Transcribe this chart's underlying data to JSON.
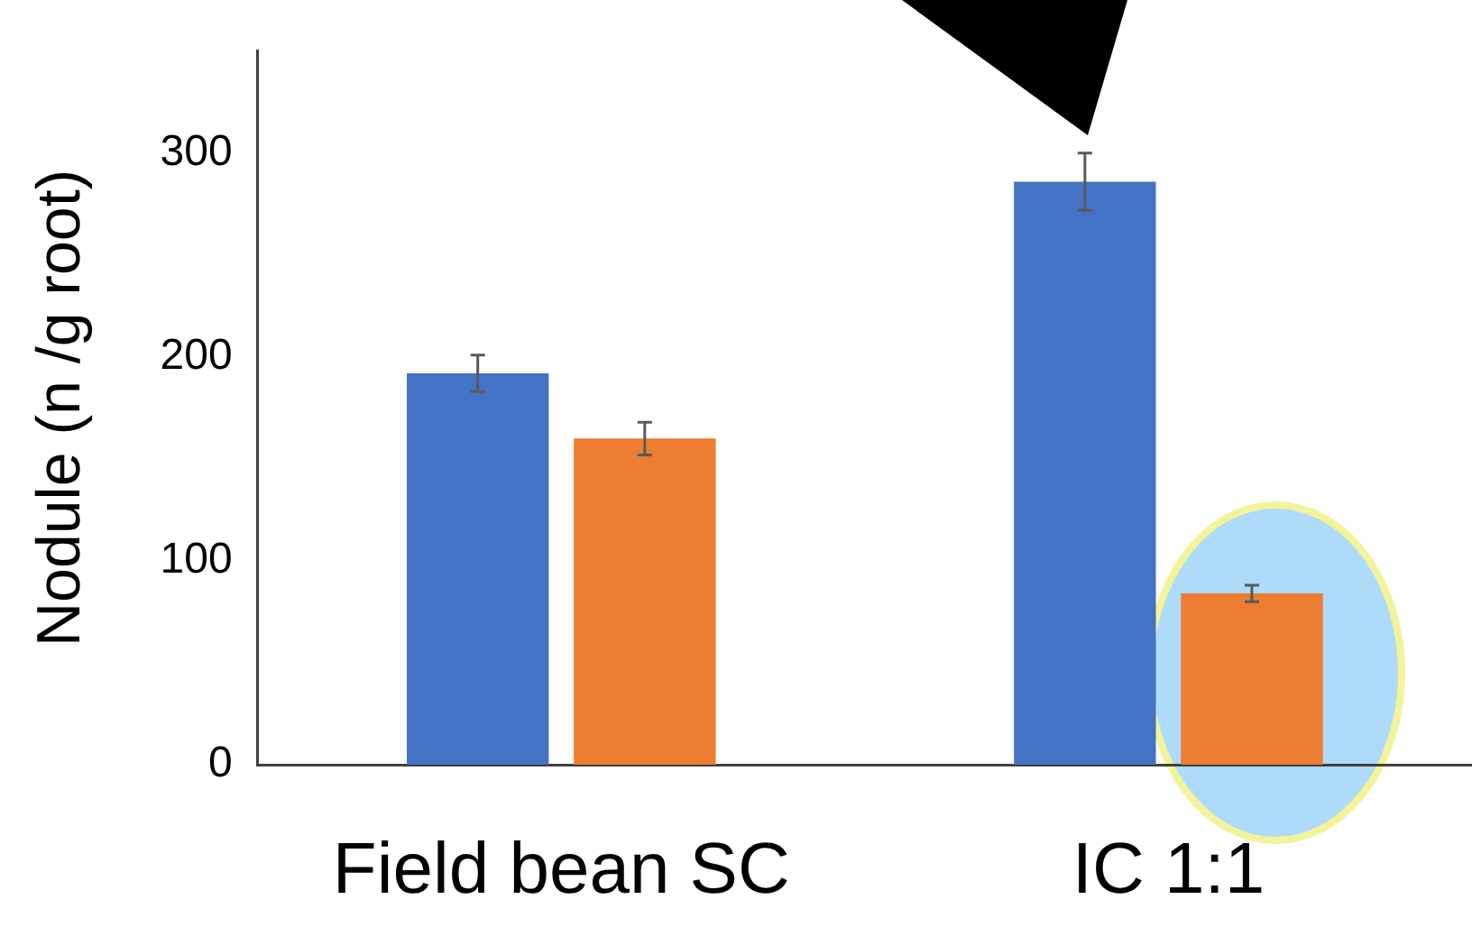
{
  "chart_data": {
    "type": "bar",
    "ylabel": "Nodule (n /g root)",
    "categories": [
      "Field bean SC",
      "IC 1:1"
    ],
    "series": [
      {
        "color": "#4472c4",
        "values": [
          192,
          286
        ],
        "errors": [
          9,
          14
        ]
      },
      {
        "color": "#ed7d31",
        "values": [
          160,
          84
        ],
        "errors": [
          8,
          4
        ]
      }
    ],
    "ylim": [
      0,
      350
    ],
    "yticks": [
      0,
      100,
      200,
      300
    ],
    "grid": false,
    "legend": false
  }
}
